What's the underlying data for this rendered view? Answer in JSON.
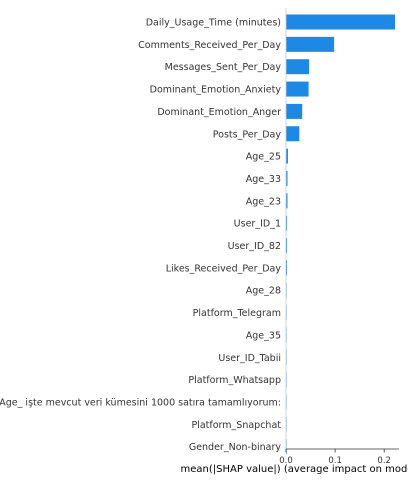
{
  "chart_data": {
    "type": "bar",
    "orientation": "horizontal",
    "title": "",
    "xlabel": "mean(|SHAP value|) (average impact on mode",
    "ylabel": "",
    "xlim": [
      0,
      0.23
    ],
    "xticks": [
      0.0,
      0.1,
      0.2
    ],
    "xtick_labels": [
      "0.0",
      "0.1",
      "0.2"
    ],
    "grid": false,
    "bar_color": "#1E88E5",
    "categories": [
      "Daily_Usage_Time (minutes)",
      "Comments_Received_Per_Day",
      "Messages_Sent_Per_Day",
      "Dominant_Emotion_Anxiety",
      "Dominant_Emotion_Anger",
      "Posts_Per_Day",
      "Age_25",
      "Age_33",
      "Age_23",
      "User_ID_1",
      "User_ID_82",
      "Likes_Received_Per_Day",
      "Age_28",
      "Platform_Telegram",
      "Age_35",
      "User_ID_Tabii",
      "Platform_Whatsapp",
      "Age_ işte mevcut veri kümesini 1000 satıra tamamlıyorum:",
      "Platform_Snapchat",
      "Gender_Non-binary"
    ],
    "values": [
      0.222,
      0.098,
      0.047,
      0.046,
      0.033,
      0.027,
      0.004,
      0.003,
      0.003,
      0.002,
      0.002,
      0.002,
      0.001,
      0.001,
      0.001,
      0.001,
      0.001,
      0.001,
      0.0005,
      0.0005
    ]
  }
}
